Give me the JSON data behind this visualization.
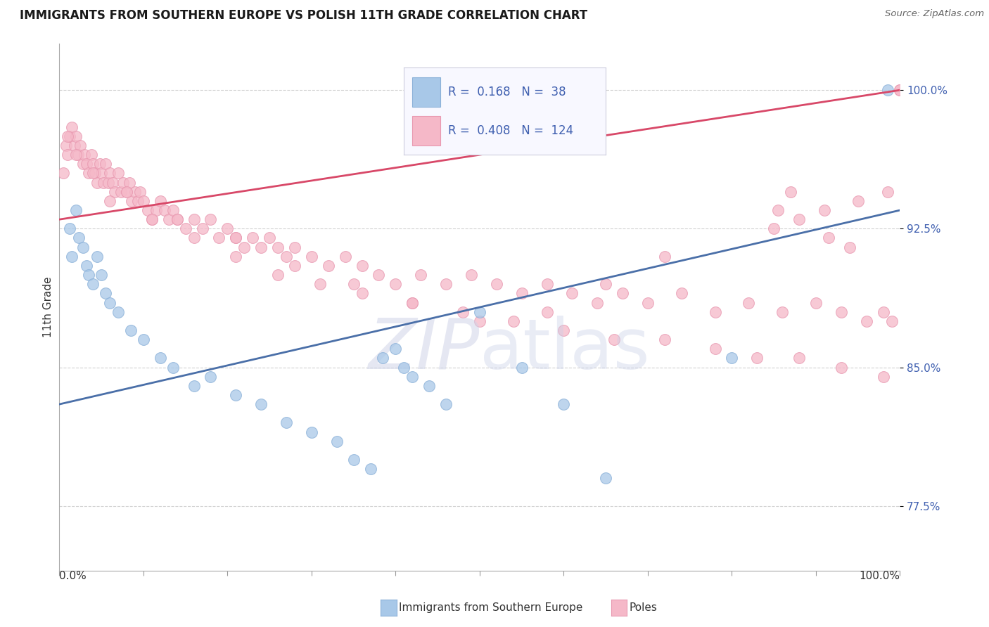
{
  "title": "IMMIGRANTS FROM SOUTHERN EUROPE VS POLISH 11TH GRADE CORRELATION CHART",
  "source": "Source: ZipAtlas.com",
  "ylabel": "11th Grade",
  "xlim": [
    0.0,
    100.0
  ],
  "ylim": [
    74.0,
    102.5
  ],
  "yticks": [
    77.5,
    85.0,
    92.5,
    100.0
  ],
  "legend_R1": "0.168",
  "legend_N1": "38",
  "legend_R2": "0.408",
  "legend_N2": "124",
  "blue_dot_color": "#a8c8e8",
  "pink_dot_color": "#f5b8c8",
  "blue_edge_color": "#8ab0d8",
  "pink_edge_color": "#e898b0",
  "blue_line_color": "#4a6fa8",
  "pink_line_color": "#d84868",
  "tick_color": "#4060b0",
  "background_color": "#ffffff",
  "grid_color": "#cccccc",
  "title_color": "#1a1a1a",
  "source_color": "#666666",
  "label_color": "#333333",
  "watermark_zip_color": "#c8cce0",
  "watermark_atlas_color": "#c0c8e0",
  "blue_x": [
    1.2,
    1.5,
    2.0,
    2.3,
    2.8,
    3.2,
    3.5,
    4.0,
    4.5,
    5.0,
    5.5,
    6.0,
    7.0,
    8.5,
    10.0,
    12.0,
    13.5,
    16.0,
    18.0,
    21.0,
    24.0,
    27.0,
    30.0,
    33.0,
    35.0,
    37.0,
    38.5,
    40.0,
    41.0,
    42.0,
    44.0,
    46.0,
    50.0,
    55.0,
    60.0,
    65.0,
    80.0,
    98.5
  ],
  "blue_y": [
    92.5,
    91.0,
    93.5,
    92.0,
    91.5,
    90.5,
    90.0,
    89.5,
    91.0,
    90.0,
    89.0,
    88.5,
    88.0,
    87.0,
    86.5,
    85.5,
    85.0,
    84.0,
    84.5,
    83.5,
    83.0,
    82.0,
    81.5,
    81.0,
    80.0,
    79.5,
    85.5,
    86.0,
    85.0,
    84.5,
    84.0,
    83.0,
    88.0,
    85.0,
    83.0,
    79.0,
    85.5,
    100.0
  ],
  "pink_x": [
    0.5,
    0.8,
    1.0,
    1.2,
    1.5,
    1.8,
    2.0,
    2.2,
    2.5,
    2.8,
    3.0,
    3.2,
    3.5,
    3.8,
    4.0,
    4.2,
    4.5,
    4.8,
    5.0,
    5.2,
    5.5,
    5.8,
    6.0,
    6.3,
    6.6,
    7.0,
    7.3,
    7.6,
    8.0,
    8.3,
    8.6,
    9.0,
    9.3,
    9.6,
    10.0,
    10.5,
    11.0,
    11.5,
    12.0,
    12.5,
    13.0,
    13.5,
    14.0,
    15.0,
    16.0,
    17.0,
    18.0,
    19.0,
    20.0,
    21.0,
    22.0,
    23.0,
    24.0,
    25.0,
    26.0,
    27.0,
    28.0,
    30.0,
    32.0,
    34.0,
    36.0,
    38.0,
    40.0,
    43.0,
    46.0,
    49.0,
    52.0,
    55.0,
    58.0,
    61.0,
    64.0,
    67.0,
    70.0,
    74.0,
    78.0,
    82.0,
    86.0,
    90.0,
    93.0,
    96.0,
    98.0,
    99.0,
    100.0,
    87.0,
    91.0,
    95.0,
    98.5,
    100.0,
    85.0,
    88.0,
    91.5,
    94.0,
    85.5,
    72.0,
    65.0,
    58.0,
    50.0,
    42.0,
    35.0,
    28.0,
    21.0,
    14.0,
    8.0,
    4.0,
    2.0,
    1.0,
    6.0,
    11.0,
    16.0,
    21.0,
    26.0,
    31.0,
    36.0,
    42.0,
    48.0,
    54.0,
    60.0,
    66.0,
    72.0,
    78.0,
    83.0,
    88.0,
    93.0,
    98.0
  ],
  "pink_y": [
    95.5,
    97.0,
    96.5,
    97.5,
    98.0,
    97.0,
    97.5,
    96.5,
    97.0,
    96.0,
    96.5,
    96.0,
    95.5,
    96.5,
    96.0,
    95.5,
    95.0,
    96.0,
    95.5,
    95.0,
    96.0,
    95.0,
    95.5,
    95.0,
    94.5,
    95.5,
    94.5,
    95.0,
    94.5,
    95.0,
    94.0,
    94.5,
    94.0,
    94.5,
    94.0,
    93.5,
    93.0,
    93.5,
    94.0,
    93.5,
    93.0,
    93.5,
    93.0,
    92.5,
    93.0,
    92.5,
    93.0,
    92.0,
    92.5,
    92.0,
    91.5,
    92.0,
    91.5,
    92.0,
    91.5,
    91.0,
    91.5,
    91.0,
    90.5,
    91.0,
    90.5,
    90.0,
    89.5,
    90.0,
    89.5,
    90.0,
    89.5,
    89.0,
    89.5,
    89.0,
    88.5,
    89.0,
    88.5,
    89.0,
    88.0,
    88.5,
    88.0,
    88.5,
    88.0,
    87.5,
    88.0,
    87.5,
    100.0,
    94.5,
    93.5,
    94.0,
    94.5,
    100.0,
    92.5,
    93.0,
    92.0,
    91.5,
    93.5,
    91.0,
    89.5,
    88.0,
    87.5,
    88.5,
    89.5,
    90.5,
    92.0,
    93.0,
    94.5,
    95.5,
    96.5,
    97.5,
    94.0,
    93.0,
    92.0,
    91.0,
    90.0,
    89.5,
    89.0,
    88.5,
    88.0,
    87.5,
    87.0,
    86.5,
    86.5,
    86.0,
    85.5,
    85.5,
    85.0,
    84.5
  ]
}
